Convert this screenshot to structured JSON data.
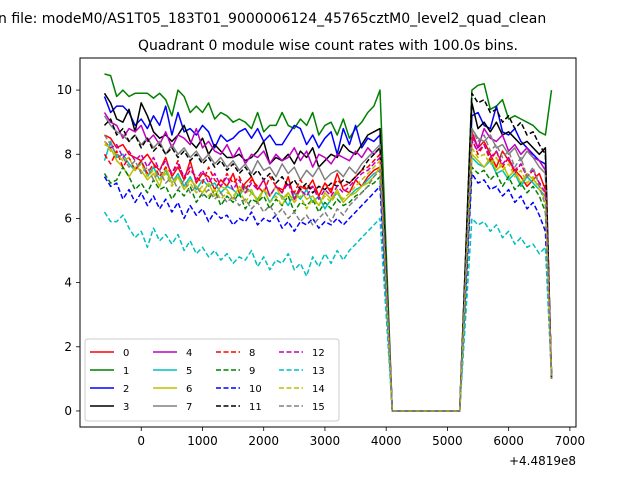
{
  "figure": {
    "suptitle": "n file: modeM0/AS1T05_183T01_9000006124_45765cztM0_level2_quad_clean",
    "title": "Quadrant 0 module wise count rates with 100.0s bins."
  },
  "chart_data": {
    "type": "line",
    "title": "Quadrant 0 module wise count rates with 100.0s bins.",
    "xlabel": "",
    "ylabel": "",
    "x_offset_label": "+4.4819e8",
    "xlim": [
      -1000,
      7100
    ],
    "ylim": [
      -0.5,
      11
    ],
    "xticks": [
      0,
      1000,
      2000,
      3000,
      4000,
      5000,
      6000,
      7000
    ],
    "yticks": [
      0,
      2,
      4,
      6,
      8,
      10
    ],
    "grid": false,
    "legend_position": "lower-left",
    "legend_columns": 4,
    "x": [
      -600,
      -500,
      -400,
      -300,
      -200,
      -100,
      0,
      100,
      200,
      300,
      400,
      500,
      600,
      700,
      800,
      900,
      1000,
      1100,
      1200,
      1300,
      1400,
      1500,
      1600,
      1700,
      1800,
      1900,
      2000,
      2100,
      2200,
      2300,
      2400,
      2500,
      2600,
      2700,
      2800,
      2900,
      3000,
      3100,
      3200,
      3300,
      3400,
      3500,
      3600,
      3700,
      3800,
      3900,
      4100,
      5200,
      5400,
      5500,
      5600,
      5700,
      5800,
      5900,
      6000,
      6100,
      6200,
      6300,
      6400,
      6500,
      6600,
      6700
    ],
    "series": [
      {
        "name": "0",
        "color": "#ff0000",
        "style": "solid",
        "values": [
          8.6,
          8.5,
          8.2,
          8.3,
          8.0,
          7.9,
          7.8,
          8.0,
          7.7,
          7.5,
          7.9,
          7.3,
          7.6,
          7.2,
          7.8,
          7.1,
          7.4,
          7.3,
          6.9,
          7.2,
          7.0,
          7.4,
          6.8,
          7.1,
          7.3,
          6.9,
          7.2,
          6.7,
          7.0,
          6.8,
          7.3,
          6.6,
          7.0,
          6.9,
          7.2,
          6.7,
          7.1,
          6.8,
          7.4,
          6.9,
          6.8,
          7.2,
          7.0,
          7.3,
          7.5,
          7.6,
          0.0,
          0.0,
          8.7,
          8.2,
          8.4,
          8.0,
          7.6,
          8.1,
          7.8,
          7.5,
          7.3,
          7.0,
          7.2,
          7.4,
          6.9,
          1.2
        ]
      },
      {
        "name": "1",
        "color": "#008000",
        "style": "solid",
        "values": [
          10.5,
          10.45,
          9.8,
          10.0,
          9.8,
          9.9,
          9.9,
          9.9,
          9.75,
          9.9,
          9.7,
          9.2,
          10.0,
          9.8,
          9.3,
          9.5,
          9.3,
          9.6,
          9.1,
          9.3,
          9.2,
          9.0,
          9.1,
          9.0,
          8.8,
          9.3,
          8.7,
          8.9,
          8.9,
          9.3,
          8.9,
          8.8,
          9.1,
          8.9,
          9.3,
          8.6,
          8.9,
          9.0,
          8.6,
          9.1,
          8.5,
          8.8,
          9.0,
          9.3,
          9.5,
          10.0,
          0.0,
          0.0,
          10.0,
          10.15,
          10.2,
          9.4,
          9.5,
          9.7,
          9.1,
          9.2,
          9.1,
          9.0,
          8.9,
          8.7,
          8.6,
          10.0
        ]
      },
      {
        "name": "2",
        "color": "#0000ff",
        "style": "solid",
        "values": [
          9.8,
          9.3,
          9.5,
          9.5,
          9.3,
          8.9,
          9.1,
          8.8,
          9.2,
          8.9,
          9.5,
          8.6,
          9.3,
          8.7,
          8.8,
          8.6,
          8.9,
          8.7,
          8.2,
          8.6,
          8.4,
          8.5,
          8.7,
          8.8,
          8.5,
          8.8,
          8.4,
          8.6,
          8.3,
          8.3,
          8.6,
          8.9,
          8.8,
          8.3,
          8.6,
          8.2,
          8.5,
          8.7,
          8.0,
          8.8,
          8.3,
          8.9,
          8.2,
          8.5,
          8.4,
          8.6,
          0.0,
          0.0,
          9.2,
          9.3,
          8.9,
          8.8,
          9.5,
          8.7,
          8.6,
          8.8,
          8.4,
          8.2,
          8.0,
          7.8,
          7.7,
          1.1
        ]
      },
      {
        "name": "3",
        "color": "#000000",
        "style": "solid",
        "values": [
          9.9,
          9.6,
          9.1,
          9.0,
          9.4,
          8.7,
          9.6,
          9.2,
          8.7,
          8.5,
          8.6,
          8.4,
          8.6,
          8.9,
          8.4,
          8.2,
          8.5,
          8.0,
          8.3,
          8.1,
          7.9,
          7.9,
          8.0,
          7.8,
          7.9,
          8.1,
          8.4,
          7.7,
          7.9,
          7.8,
          8.0,
          7.7,
          8.1,
          7.9,
          8.2,
          7.6,
          7.8,
          8.0,
          7.9,
          8.3,
          8.1,
          8.0,
          8.3,
          8.6,
          8.7,
          8.8,
          0.0,
          0.0,
          9.6,
          8.8,
          9.0,
          8.7,
          9.0,
          8.6,
          8.7,
          8.5,
          8.3,
          8.4,
          8.2,
          8.0,
          8.2,
          1.0
        ]
      },
      {
        "name": "4",
        "color": "#bf00bf",
        "style": "solid",
        "values": [
          9.3,
          9.0,
          8.9,
          8.5,
          8.8,
          8.7,
          8.9,
          8.4,
          8.6,
          8.3,
          8.7,
          8.2,
          8.6,
          8.5,
          8.3,
          8.8,
          8.2,
          8.4,
          8.1,
          8.0,
          8.3,
          7.9,
          8.2,
          7.7,
          8.0,
          7.9,
          8.1,
          7.7,
          8.0,
          7.8,
          7.9,
          8.2,
          7.8,
          8.1,
          7.6,
          8.0,
          7.9,
          7.7,
          8.0,
          7.9,
          7.8,
          8.1,
          7.9,
          8.2,
          8.0,
          8.2,
          0.0,
          0.0,
          8.6,
          8.2,
          8.8,
          8.5,
          8.4,
          8.6,
          8.1,
          8.3,
          8.0,
          8.2,
          7.9,
          7.8,
          7.5,
          1.1
        ]
      },
      {
        "name": "5",
        "color": "#00bfbf",
        "style": "solid",
        "values": [
          7.8,
          8.4,
          7.9,
          8.0,
          7.7,
          7.5,
          7.8,
          7.3,
          7.6,
          7.2,
          7.5,
          7.1,
          7.4,
          7.0,
          7.3,
          6.9,
          7.2,
          7.0,
          7.1,
          6.8,
          7.0,
          6.9,
          6.7,
          7.0,
          6.8,
          6.6,
          6.9,
          6.5,
          6.8,
          6.7,
          6.4,
          6.8,
          6.6,
          6.9,
          6.5,
          6.7,
          6.3,
          6.6,
          6.8,
          6.5,
          6.7,
          6.9,
          7.0,
          7.2,
          7.4,
          7.5,
          0.0,
          0.0,
          7.9,
          7.7,
          7.6,
          7.8,
          7.4,
          7.5,
          7.2,
          7.4,
          7.0,
          7.3,
          7.1,
          6.9,
          6.7,
          1.2
        ]
      },
      {
        "name": "6",
        "color": "#bfbf00",
        "style": "solid",
        "values": [
          8.3,
          8.2,
          7.8,
          7.6,
          7.3,
          7.6,
          7.5,
          7.2,
          7.4,
          7.0,
          7.6,
          7.1,
          7.3,
          6.9,
          7.2,
          7.0,
          6.8,
          7.1,
          6.7,
          7.0,
          6.9,
          6.6,
          7.0,
          6.8,
          6.9,
          6.5,
          6.9,
          6.7,
          7.0,
          6.6,
          6.8,
          6.5,
          6.9,
          6.6,
          6.7,
          6.4,
          6.8,
          6.6,
          6.9,
          6.5,
          6.7,
          6.8,
          7.0,
          7.1,
          7.3,
          7.6,
          0.0,
          0.0,
          8.0,
          7.8,
          7.6,
          7.9,
          7.5,
          7.7,
          7.3,
          7.5,
          7.1,
          7.4,
          7.2,
          7.0,
          6.8,
          1.1
        ]
      },
      {
        "name": "7",
        "color": "#808080",
        "style": "solid",
        "values": [
          9.2,
          8.9,
          8.7,
          8.6,
          8.4,
          8.6,
          8.3,
          8.5,
          8.2,
          8.4,
          8.0,
          8.3,
          8.0,
          8.2,
          7.9,
          8.1,
          7.8,
          8.0,
          7.7,
          7.9,
          7.6,
          7.8,
          7.5,
          7.7,
          7.4,
          7.8,
          7.5,
          7.6,
          7.3,
          7.7,
          7.4,
          7.6,
          7.2,
          7.5,
          7.3,
          7.6,
          7.2,
          7.4,
          7.5,
          7.3,
          7.6,
          7.4,
          7.7,
          7.9,
          8.1,
          8.3,
          0.0,
          0.0,
          8.8,
          8.5,
          8.4,
          8.6,
          8.2,
          8.3,
          8.0,
          8.2,
          7.8,
          8.1,
          7.9,
          7.6,
          7.4,
          1.0
        ]
      },
      {
        "name": "8",
        "color": "#ff0000",
        "style": "dashed",
        "values": [
          8.0,
          7.7,
          8.1,
          7.6,
          7.9,
          7.5,
          7.8,
          7.4,
          7.7,
          7.3,
          7.6,
          7.4,
          7.8,
          7.2,
          7.5,
          7.3,
          7.1,
          7.6,
          7.2,
          7.0,
          7.4,
          7.1,
          7.3,
          6.9,
          7.2,
          7.0,
          6.8,
          7.3,
          7.0,
          6.9,
          7.1,
          6.8,
          7.2,
          6.9,
          7.0,
          6.7,
          7.1,
          6.9,
          7.2,
          7.0,
          7.1,
          7.3,
          7.5,
          7.6,
          7.8,
          8.0,
          0.0,
          0.0,
          8.5,
          8.0,
          8.3,
          7.8,
          8.1,
          7.6,
          7.9,
          7.4,
          7.7,
          7.3,
          7.5,
          7.1,
          7.0,
          1.2
        ]
      },
      {
        "name": "9",
        "color": "#008000",
        "style": "dashed",
        "values": [
          7.4,
          7.1,
          7.2,
          7.6,
          7.3,
          6.9,
          7.1,
          6.8,
          7.2,
          6.9,
          7.0,
          6.6,
          6.9,
          6.7,
          7.0,
          6.5,
          6.8,
          6.6,
          6.9,
          6.4,
          6.7,
          6.5,
          6.8,
          6.3,
          6.6,
          6.5,
          6.7,
          6.3,
          6.6,
          6.4,
          6.7,
          6.2,
          6.5,
          6.4,
          6.6,
          6.2,
          6.5,
          6.3,
          6.6,
          6.4,
          6.5,
          6.7,
          6.8,
          7.0,
          7.1,
          7.3,
          0.0,
          0.0,
          7.6,
          7.4,
          7.5,
          7.2,
          7.4,
          7.0,
          7.3,
          6.9,
          7.1,
          6.8,
          7.0,
          6.7,
          6.2,
          1.1
        ]
      },
      {
        "name": "10",
        "color": "#0000ff",
        "style": "dashed",
        "values": [
          7.3,
          7.0,
          7.1,
          6.6,
          6.9,
          6.5,
          6.8,
          6.4,
          6.7,
          6.3,
          6.6,
          6.2,
          6.5,
          6.0,
          6.4,
          6.1,
          6.3,
          5.9,
          6.2,
          6.0,
          6.1,
          5.8,
          6.0,
          5.9,
          6.2,
          5.8,
          6.0,
          5.9,
          6.1,
          5.7,
          5.9,
          5.6,
          5.9,
          5.8,
          6.0,
          5.7,
          5.9,
          5.8,
          6.0,
          5.8,
          6.0,
          6.2,
          6.4,
          6.6,
          6.8,
          7.0,
          0.0,
          0.0,
          7.4,
          7.1,
          7.2,
          6.9,
          7.0,
          6.7,
          6.9,
          6.5,
          6.7,
          6.3,
          6.5,
          6.1,
          5.6,
          1.1
        ]
      },
      {
        "name": "11",
        "color": "#000000",
        "style": "dashed",
        "values": [
          8.9,
          9.1,
          8.6,
          8.8,
          8.4,
          8.6,
          8.2,
          8.5,
          8.1,
          8.3,
          8.0,
          8.2,
          7.9,
          8.1,
          7.8,
          8.0,
          7.7,
          7.9,
          7.6,
          7.8,
          7.5,
          7.7,
          7.4,
          7.6,
          7.3,
          7.5,
          7.2,
          7.4,
          7.1,
          7.3,
          7.0,
          7.2,
          6.9,
          7.1,
          6.8,
          7.0,
          6.9,
          7.1,
          7.0,
          7.2,
          7.1,
          7.3,
          7.5,
          7.8,
          8.0,
          8.2,
          0.0,
          0.0,
          9.9,
          9.6,
          9.7,
          9.3,
          9.4,
          9.0,
          9.2,
          8.8,
          9.0,
          8.6,
          8.7,
          8.3,
          8.0,
          1.0
        ]
      },
      {
        "name": "12",
        "color": "#bf00bf",
        "style": "dashed",
        "values": [
          8.4,
          8.2,
          8.3,
          7.9,
          8.1,
          7.8,
          8.0,
          7.6,
          7.9,
          7.5,
          7.8,
          7.4,
          7.7,
          7.3,
          7.6,
          7.2,
          7.5,
          7.1,
          7.4,
          7.0,
          7.3,
          6.9,
          7.2,
          6.8,
          7.1,
          6.9,
          7.2,
          6.7,
          7.0,
          6.8,
          7.1,
          6.6,
          6.9,
          6.7,
          7.0,
          6.6,
          6.9,
          6.7,
          7.0,
          6.8,
          7.0,
          7.2,
          7.4,
          7.5,
          7.7,
          7.9,
          0.0,
          0.0,
          8.4,
          8.1,
          8.3,
          7.9,
          8.1,
          7.7,
          7.9,
          7.5,
          7.7,
          7.3,
          7.5,
          7.1,
          6.8,
          1.2
        ]
      },
      {
        "name": "13",
        "color": "#00bfbf",
        "style": "dashed",
        "values": [
          6.2,
          5.9,
          5.9,
          6.1,
          5.7,
          5.4,
          5.6,
          5.1,
          5.7,
          5.3,
          5.5,
          5.2,
          5.5,
          5.0,
          5.3,
          4.9,
          5.1,
          4.8,
          5.0,
          4.7,
          4.9,
          4.6,
          4.8,
          4.7,
          5.0,
          4.5,
          4.8,
          4.4,
          4.7,
          4.6,
          4.9,
          4.4,
          4.6,
          4.2,
          4.8,
          4.5,
          4.9,
          4.6,
          5.0,
          4.7,
          5.0,
          5.2,
          5.4,
          5.6,
          5.8,
          6.0,
          0.0,
          0.0,
          6.0,
          5.8,
          5.9,
          5.6,
          5.8,
          5.4,
          5.6,
          5.2,
          5.4,
          5.1,
          5.2,
          4.9,
          5.1,
          1.1
        ]
      },
      {
        "name": "14",
        "color": "#bfbf00",
        "style": "dashed",
        "values": [
          8.4,
          8.1,
          8.0,
          7.8,
          7.9,
          7.5,
          7.7,
          7.3,
          7.5,
          7.2,
          7.4,
          7.0,
          7.3,
          6.9,
          7.1,
          6.8,
          7.0,
          6.7,
          6.9,
          6.6,
          6.8,
          6.7,
          6.9,
          6.5,
          6.8,
          6.6,
          6.9,
          6.5,
          6.7,
          6.4,
          6.8,
          6.5,
          6.7,
          6.3,
          6.6,
          6.4,
          6.7,
          6.5,
          6.8,
          6.6,
          6.8,
          7.0,
          7.2,
          7.4,
          7.6,
          7.8,
          0.0,
          0.0,
          8.2,
          7.9,
          8.0,
          7.7,
          7.9,
          7.5,
          7.7,
          7.3,
          7.5,
          7.1,
          7.3,
          6.9,
          6.6,
          1.1
        ]
      },
      {
        "name": "15",
        "color": "#808080",
        "style": "dashed",
        "values": [
          8.6,
          8.3,
          8.0,
          7.9,
          7.6,
          7.8,
          7.4,
          7.6,
          7.2,
          7.5,
          7.1,
          7.3,
          6.9,
          7.2,
          6.8,
          7.0,
          6.7,
          6.9,
          6.6,
          6.8,
          6.5,
          6.7,
          6.4,
          6.6,
          6.3,
          6.5,
          6.2,
          6.4,
          6.1,
          6.3,
          6.0,
          6.2,
          5.9,
          6.1,
          5.8,
          6.0,
          6.2,
          5.9,
          6.3,
          6.1,
          6.4,
          6.6,
          6.8,
          7.0,
          7.3,
          7.5,
          0.0,
          0.0,
          8.8,
          8.4,
          8.6,
          8.1,
          8.3,
          7.9,
          8.1,
          7.6,
          7.9,
          7.3,
          7.6,
          7.0,
          6.4,
          1.0
        ]
      }
    ]
  }
}
